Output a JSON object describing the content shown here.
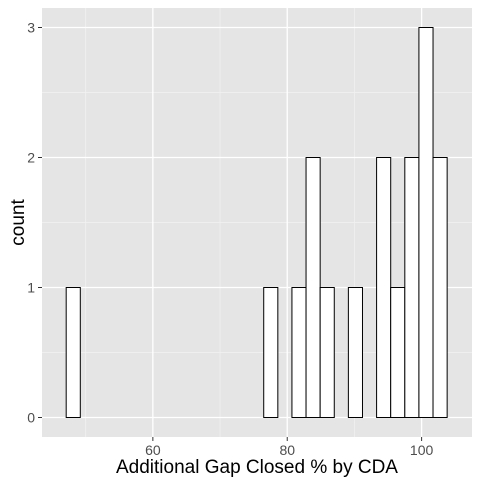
{
  "chart_data": {
    "type": "bar",
    "subtype": "histogram",
    "title": "",
    "xlabel": "Additional Gap Closed % by CDA",
    "ylabel": "count",
    "bin_width": 2.1,
    "bins": [
      {
        "start": 47.1,
        "count": 1
      },
      {
        "start": 49.2,
        "count": 0
      },
      {
        "start": 51.3,
        "count": 0
      },
      {
        "start": 53.4,
        "count": 0
      },
      {
        "start": 55.5,
        "count": 0
      },
      {
        "start": 57.6,
        "count": 0
      },
      {
        "start": 59.7,
        "count": 0
      },
      {
        "start": 61.8,
        "count": 0
      },
      {
        "start": 63.9,
        "count": 0
      },
      {
        "start": 66.0,
        "count": 0
      },
      {
        "start": 68.1,
        "count": 0
      },
      {
        "start": 70.2,
        "count": 0
      },
      {
        "start": 72.3,
        "count": 0
      },
      {
        "start": 74.4,
        "count": 0
      },
      {
        "start": 76.5,
        "count": 1
      },
      {
        "start": 78.6,
        "count": 0
      },
      {
        "start": 80.7,
        "count": 1
      },
      {
        "start": 82.8,
        "count": 2
      },
      {
        "start": 84.9,
        "count": 1
      },
      {
        "start": 87.0,
        "count": 0
      },
      {
        "start": 89.1,
        "count": 1
      },
      {
        "start": 91.2,
        "count": 0
      },
      {
        "start": 93.3,
        "count": 2
      },
      {
        "start": 95.4,
        "count": 1
      },
      {
        "start": 97.5,
        "count": 2
      },
      {
        "start": 99.6,
        "count": 3
      },
      {
        "start": 101.7,
        "count": 2
      }
    ],
    "xlim": [
      43.5,
      107.5
    ],
    "ylim": [
      -0.15,
      3.15
    ],
    "xticks": [
      60,
      80,
      100
    ],
    "xtick_labels": [
      "60",
      "80",
      "100"
    ],
    "yticks": [
      0,
      1,
      2,
      3
    ],
    "ytick_labels": [
      "0",
      "1",
      "2",
      "3"
    ],
    "grid": true,
    "legend": "none",
    "colors": {
      "panel_background": "#e5e5e5",
      "grid_major": "#ffffff",
      "bar_fill": "#ffffff",
      "bar_outline": "#000000",
      "tick_text": "#4d4d4d"
    }
  }
}
